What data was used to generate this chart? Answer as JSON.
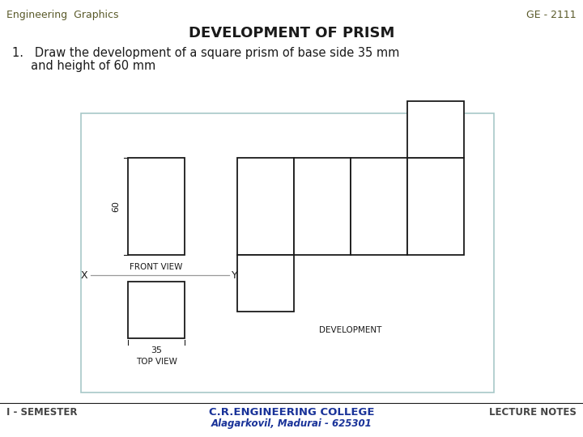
{
  "bg_color": "#ffffff",
  "border_color": "#a8c8c8",
  "line_color": "#1a1a1a",
  "title": "DEVELOPMENT OF PRISM",
  "header_left": "Engineering  Graphics",
  "header_right": "GE - 2111",
  "problem_text1": "1.   Draw the development of a square prism of base side 35 mm",
  "problem_text2": "     and height of 60 mm",
  "footer_left": "I - SEMESTER",
  "footer_center1": "C.R.ENGINEERING COLLEGE",
  "footer_center2": "Alagarkovil, Madurai - 625301",
  "footer_right": "LECTURE NOTES",
  "dim_60": "60",
  "dim_35": "35",
  "label_front_view": "FRONT VIEW",
  "label_top_view": "TOP VIEW",
  "label_development": "DEVELOPMENT",
  "label_x": "X",
  "label_y": "Y",
  "header_color": "#5a5a2a",
  "footer_text_color": "#444444",
  "footer_college_color": "#1a3399"
}
